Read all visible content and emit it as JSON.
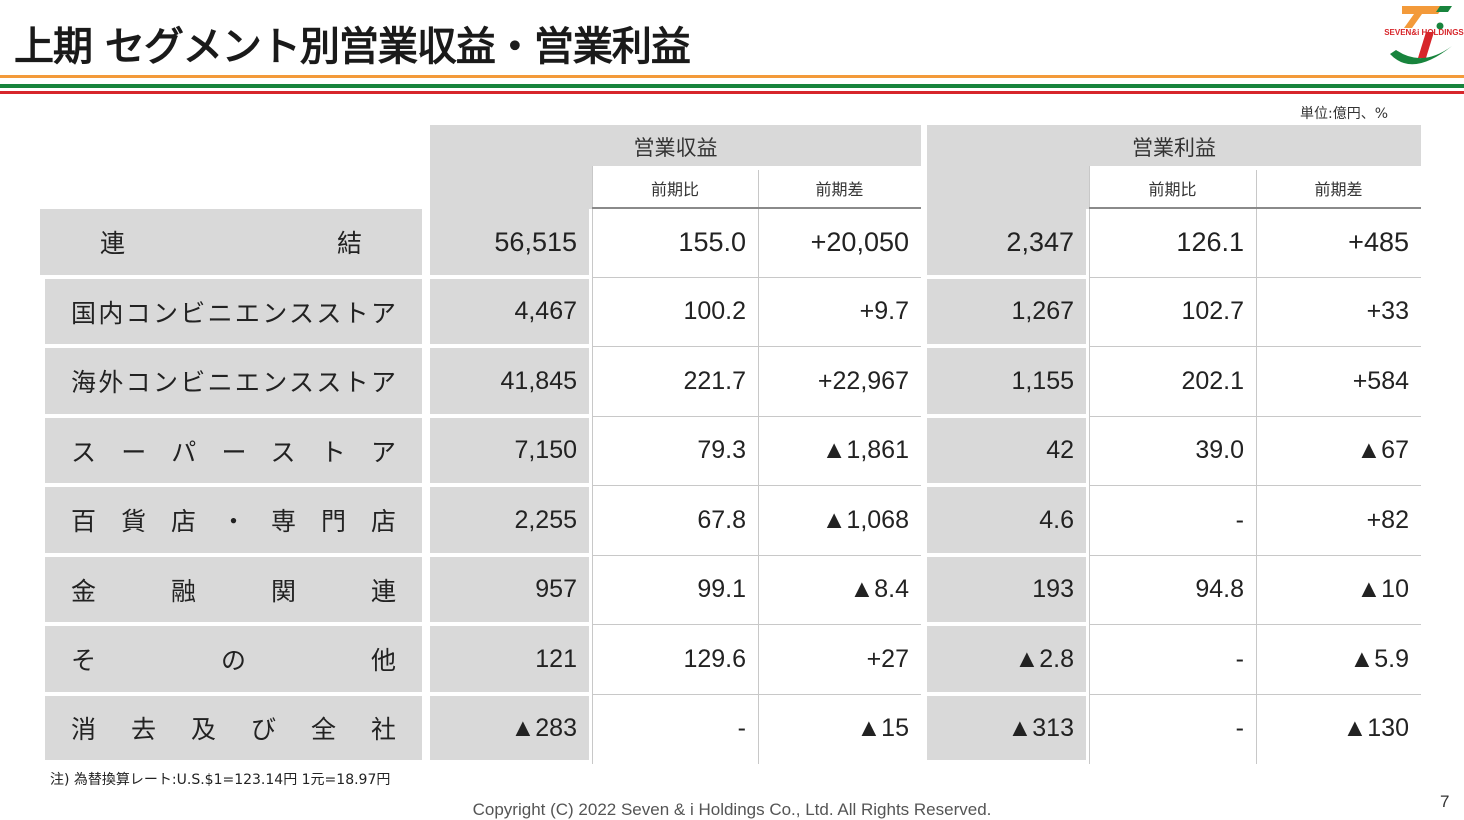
{
  "title": "上期 セグメント別営業収益・営業利益",
  "logo": {
    "text": "SEVEN&i HOLDINGS"
  },
  "unit": "単位:億円、%",
  "table": {
    "group_headers": [
      "営業収益",
      "営業利益"
    ],
    "sub_headers": [
      "前期比",
      "前期差",
      "前期比",
      "前期差"
    ],
    "rows": [
      {
        "label": "連結",
        "values": [
          "56,515",
          "155.0",
          "+20,050",
          "2,347",
          "126.1",
          "+485"
        ]
      },
      {
        "label": "国内コンビニエンスストア",
        "values": [
          "4,467",
          "100.2",
          "+9.7",
          "1,267",
          "102.7",
          "+33"
        ]
      },
      {
        "label": "海外コンビニエンスストア",
        "values": [
          "41,845",
          "221.7",
          "+22,967",
          "1,155",
          "202.1",
          "+584"
        ]
      },
      {
        "label": "スーパーストア",
        "values": [
          "7,150",
          "79.3",
          "▲1,861",
          "42",
          "39.0",
          "▲67"
        ]
      },
      {
        "label": "百貨店・専門店",
        "values": [
          "2,255",
          "67.8",
          "▲1,068",
          "4.6",
          "-",
          "+82"
        ]
      },
      {
        "label": "金融関連",
        "values": [
          "957",
          "99.1",
          "▲8.4",
          "193",
          "94.8",
          "▲10"
        ]
      },
      {
        "label": "その他",
        "values": [
          "121",
          "129.6",
          "+27",
          "▲2.8",
          "-",
          "▲5.9"
        ]
      },
      {
        "label": "消去及び全社",
        "values": [
          "▲283",
          "-",
          "▲15",
          "▲313",
          "-",
          "▲130"
        ]
      }
    ]
  },
  "note": "注) 為替換算レート:U.S.$1=123.14円 1元=18.97円",
  "copyright": "Copyright (C) 2022  Seven & i Holdings Co., Ltd.  All Rights Reserved.",
  "page_number": "7",
  "colors": {
    "orange": "#f39a3a",
    "green": "#18843d",
    "red": "#d7262b",
    "cell_gray": "#d9d9d9"
  }
}
